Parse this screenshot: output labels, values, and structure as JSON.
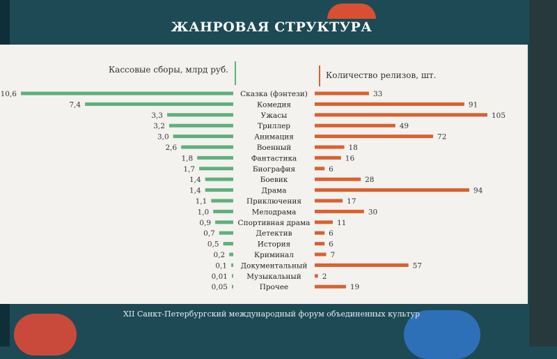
{
  "header": {
    "title": "ЖАНРОВАЯ СТРУКТУРА"
  },
  "footer": {
    "text": "XII Санкт-Петербургский международный форум объединенных культур"
  },
  "chart_data": {
    "type": "bar",
    "orientation": "horizontal-butterfly",
    "categories": [
      "Сказка (фэнтези)",
      "Комедия",
      "Ужасы",
      "Триллер",
      "Анимация",
      "Военный",
      "Фантастика",
      "Биография",
      "Боевик",
      "Драма",
      "Приключения",
      "Мелодрама",
      "Спортивная драма",
      "Детектив",
      "История",
      "Криминал",
      "Документальный",
      "Музыкальный",
      "Прочее"
    ],
    "series": [
      {
        "name": "Кассовые сборы, млрд руб.",
        "side": "left",
        "color": "#5fb07a",
        "values": [
          10.6,
          7.4,
          3.3,
          3.2,
          3.0,
          2.6,
          1.8,
          1.7,
          1.4,
          1.4,
          1.1,
          1.0,
          0.9,
          0.7,
          0.5,
          0.2,
          0.1,
          0.01,
          0.05
        ],
        "labels": [
          "10,6",
          "7,4",
          "3,3",
          "3,2",
          "3,0",
          "2,6",
          "1,8",
          "1,7",
          "1,4",
          "1,4",
          "1,1",
          "1,0",
          "0,9",
          "0,7",
          "0,5",
          "0,2",
          "0,1",
          "0,01",
          "0,05"
        ]
      },
      {
        "name": "Количество релизов, шт.",
        "side": "right",
        "color": "#d9612f",
        "values": [
          33,
          91,
          105,
          49,
          72,
          18,
          16,
          6,
          28,
          94,
          17,
          30,
          11,
          6,
          6,
          7,
          57,
          2,
          19
        ],
        "labels": [
          "33",
          "91",
          "105",
          "49",
          "72",
          "18",
          "16",
          "6",
          "28",
          "94",
          "17",
          "30",
          "11",
          "6",
          "6",
          "7",
          "57",
          "2",
          "19"
        ]
      }
    ],
    "divider_colors": {
      "left": "#5fb07a",
      "right": "#d9612f"
    }
  }
}
